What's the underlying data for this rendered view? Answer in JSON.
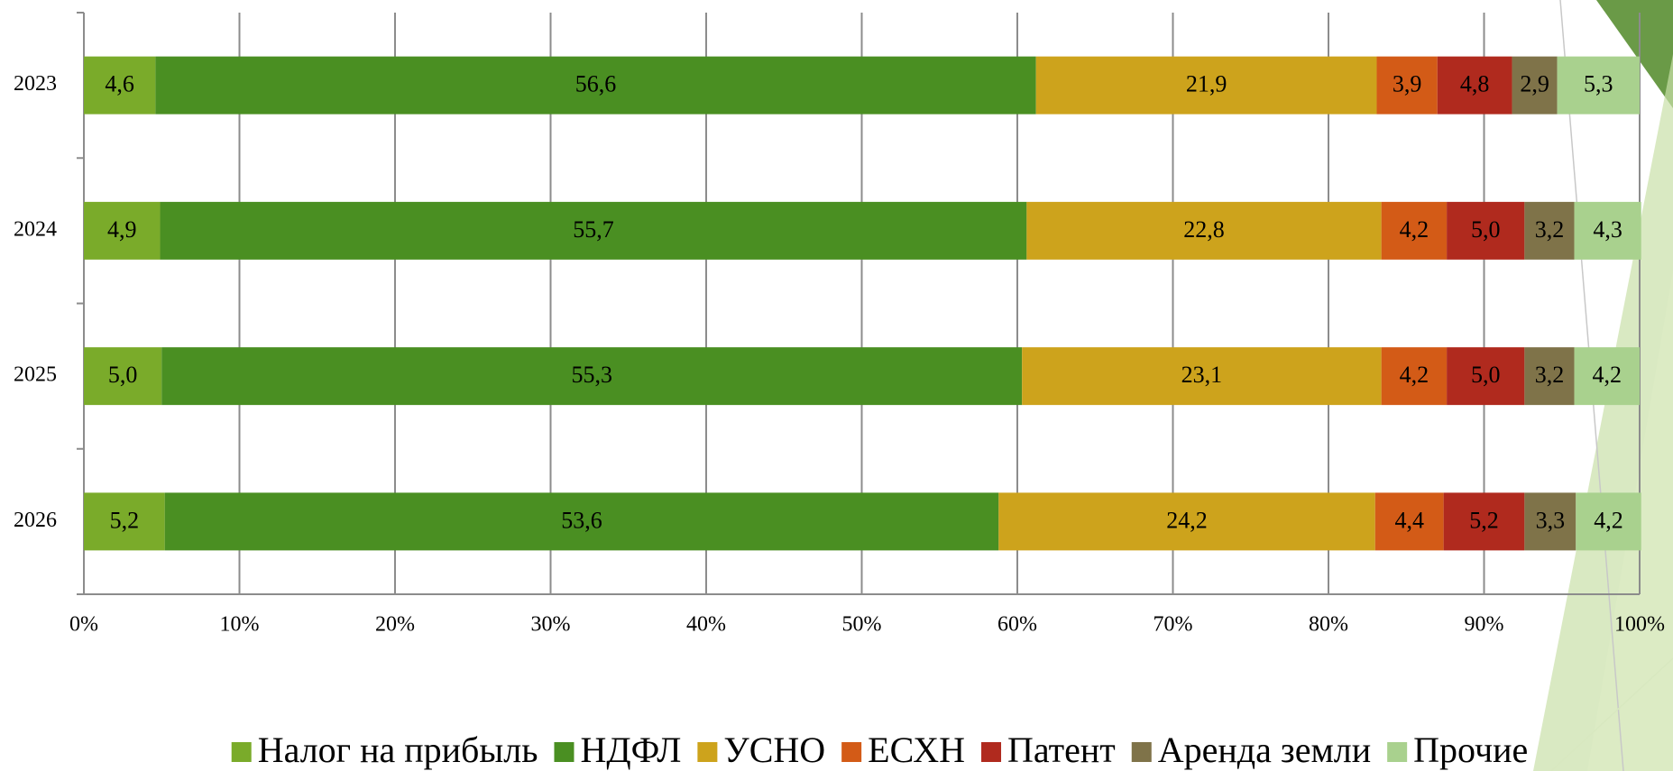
{
  "chart_data": {
    "type": "stacked-bar-horizontal",
    "categories": [
      "2023",
      "2024",
      "2025",
      "2026"
    ],
    "series": [
      {
        "name": "Налог на прибыль",
        "color": "#7aab2a",
        "values": [
          4.6,
          4.9,
          5.0,
          5.2
        ],
        "value_labels": [
          "4,6",
          "4,9",
          "5,0",
          "5,2"
        ]
      },
      {
        "name": "НДФЛ",
        "color": "#4a8f22",
        "values": [
          56.6,
          55.7,
          55.3,
          53.6
        ],
        "value_labels": [
          "56,6",
          "55,7",
          "55,3",
          "53,6"
        ]
      },
      {
        "name": "УСНО",
        "color": "#cda31c",
        "values": [
          21.9,
          22.8,
          23.1,
          24.2
        ],
        "value_labels": [
          "21,9",
          "22,8",
          "23,1",
          "24,2"
        ]
      },
      {
        "name": "ЕСХН",
        "color": "#d35b17",
        "values": [
          3.9,
          4.2,
          4.2,
          4.4
        ],
        "value_labels": [
          "3,9",
          "4,2",
          "4,2",
          "4,4"
        ]
      },
      {
        "name": "Патент",
        "color": "#b02a1e",
        "values": [
          4.8,
          5.0,
          5.0,
          5.2
        ],
        "value_labels": [
          "4,8",
          "5,0",
          "5,0",
          "5,2"
        ]
      },
      {
        "name": "Аренда земли",
        "color": "#7f7349",
        "values": [
          2.9,
          3.2,
          3.2,
          3.3
        ],
        "value_labels": [
          "2,9",
          "3,2",
          "3,2",
          "3,3"
        ]
      },
      {
        "name": "Прочие",
        "color": "#a9d18e",
        "values": [
          5.3,
          4.3,
          4.2,
          4.2
        ],
        "value_labels": [
          "5,3",
          "4,3",
          "4,2",
          "4,2"
        ]
      }
    ],
    "xlim": [
      0,
      100
    ],
    "xticks": [
      {
        "value": 0,
        "label": "0%"
      },
      {
        "value": 10,
        "label": "10%"
      },
      {
        "value": 20,
        "label": "20%"
      },
      {
        "value": 30,
        "label": "30%"
      },
      {
        "value": 40,
        "label": "40%"
      },
      {
        "value": 50,
        "label": "50%"
      },
      {
        "value": 60,
        "label": "60%"
      },
      {
        "value": 70,
        "label": "70%"
      },
      {
        "value": 80,
        "label": "80%"
      },
      {
        "value": 90,
        "label": "90%"
      },
      {
        "value": 100,
        "label": "100%"
      }
    ],
    "grid": true,
    "legend": "bottom"
  }
}
